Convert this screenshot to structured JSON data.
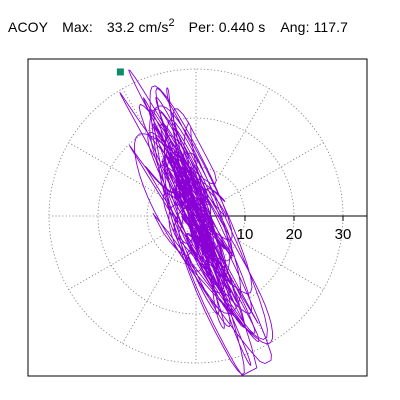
{
  "header": {
    "channel": "ACOY",
    "max_label": "Max:",
    "max_value": "33.2",
    "max_unit": "cm/s",
    "max_unit_exp": "2",
    "per_label": "Per:",
    "per_value": "0.440 s",
    "ang_label": "Ang:",
    "ang_value": "117.7"
  },
  "chart_data": {
    "type": "scatter",
    "title": "",
    "coordinate_system": "polar",
    "radial_ticks": [
      10,
      20,
      30
    ],
    "rings": [
      10,
      20,
      30
    ],
    "spokes_deg": [
      0,
      30,
      60,
      90,
      120,
      150,
      180,
      210,
      240,
      270,
      300,
      330
    ],
    "radial_max": 35,
    "grid": "dotted",
    "orbit_color": "#8a00d4",
    "marker_color": "#0f8a6a",
    "peak": {
      "amplitude": 33.2,
      "angle_deg": 117.7
    },
    "principal_axis_deg": 117.7,
    "major_extent": [
      -33.2,
      33.2
    ],
    "minor_extent": [
      -7.5,
      7.5
    ]
  }
}
